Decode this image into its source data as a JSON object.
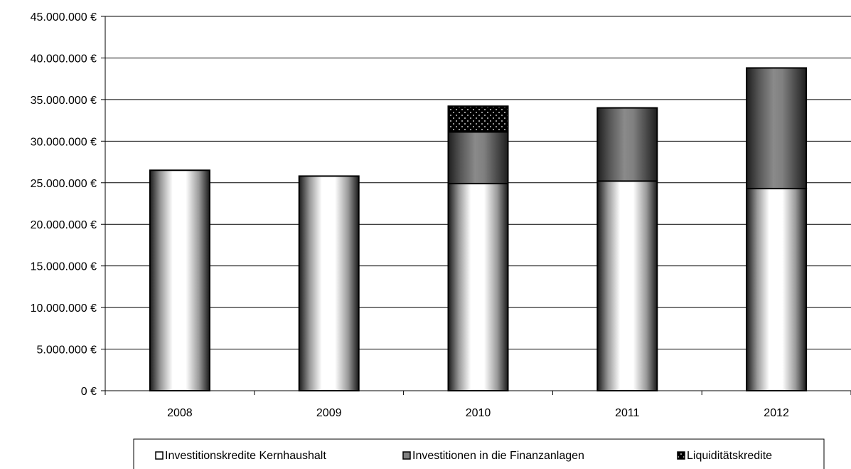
{
  "chart_data": {
    "type": "bar",
    "stacked": true,
    "categories": [
      "2008",
      "2009",
      "2010",
      "2011",
      "2012"
    ],
    "series": [
      {
        "name": "Investitionskredite Kernhaushalt",
        "values": [
          26500000,
          25800000,
          24900000,
          25200000,
          24300000
        ],
        "pattern": "white-gradient"
      },
      {
        "name": "Investitionen in die Finanzanlagen",
        "values": [
          0,
          0,
          6200000,
          8800000,
          14500000
        ],
        "pattern": "grey-gradient"
      },
      {
        "name": "Liquiditätskredite",
        "values": [
          0,
          0,
          3100000,
          0,
          0
        ],
        "pattern": "dotted-black"
      }
    ],
    "ylim": [
      0,
      45000000
    ],
    "y_ticks": [
      "0 €",
      "5.000.000 €",
      "10.000.000 €",
      "15.000.000 €",
      "20.000.000 €",
      "25.000.000 €",
      "30.000.000 €",
      "35.000.000 €",
      "40.000.000 €",
      "45.000.000 €"
    ],
    "title": "",
    "xlabel": "",
    "ylabel": "",
    "grid": true,
    "legend_position": "bottom"
  }
}
